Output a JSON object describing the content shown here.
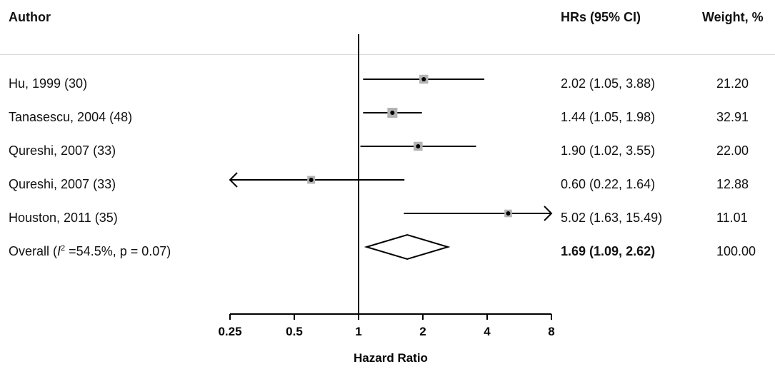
{
  "headers": {
    "author": "Author",
    "hr": "HRs (95% CI)",
    "weight": "Weight, %"
  },
  "rows": [
    {
      "label": "Hu, 1999 (30)",
      "ci_text": "2.02 (1.05, 3.88)",
      "weight": "21.20"
    },
    {
      "label": "Tanasescu, 2004 (48)",
      "ci_text": "1.44 (1.05, 1.98)",
      "weight": "32.91"
    },
    {
      "label": "Qureshi, 2007 (33)",
      "ci_text": "1.90 (1.02, 3.55)",
      "weight": "22.00"
    },
    {
      "label": "Qureshi, 2007 (33)",
      "ci_text": "0.60 (0.22, 1.64)",
      "weight": "12.88"
    },
    {
      "label": "Houston, 2011 (35)",
      "ci_text": "5.02 (1.63, 15.49)",
      "weight": "11.01"
    }
  ],
  "overall": {
    "label_prefix": "Overall (",
    "label_i": "I",
    "label_sup": "2",
    "label_suffix": " =54.5%, p = 0.07)",
    "ci_text": "1.69 (1.09, 2.62)",
    "weight": "100.00"
  },
  "chart_data": {
    "type": "forest",
    "xlabel": "Hazard Ratio",
    "xscale": "log2",
    "xlim": [
      0.25,
      8
    ],
    "ticks": [
      0.25,
      0.5,
      1,
      2,
      4,
      8
    ],
    "tick_labels": [
      "0.25",
      "0.5",
      "1",
      "2",
      "4",
      "8"
    ],
    "reference_line": 1,
    "studies": [
      {
        "name": "Hu, 1999 (30)",
        "hr": 2.02,
        "lower": 1.05,
        "upper": 3.88,
        "weight": 21.2
      },
      {
        "name": "Tanasescu, 2004 (48)",
        "hr": 1.44,
        "lower": 1.05,
        "upper": 1.98,
        "weight": 32.91
      },
      {
        "name": "Qureshi, 2007 (33)",
        "hr": 1.9,
        "lower": 1.02,
        "upper": 3.55,
        "weight": 22.0
      },
      {
        "name": "Qureshi, 2007 (33)",
        "hr": 0.6,
        "lower": 0.22,
        "upper": 1.64,
        "weight": 12.88
      },
      {
        "name": "Houston, 2011 (35)",
        "hr": 5.02,
        "lower": 1.63,
        "upper": 15.49,
        "weight": 11.01
      }
    ],
    "overall": {
      "hr": 1.69,
      "lower": 1.09,
      "upper": 2.62
    }
  }
}
